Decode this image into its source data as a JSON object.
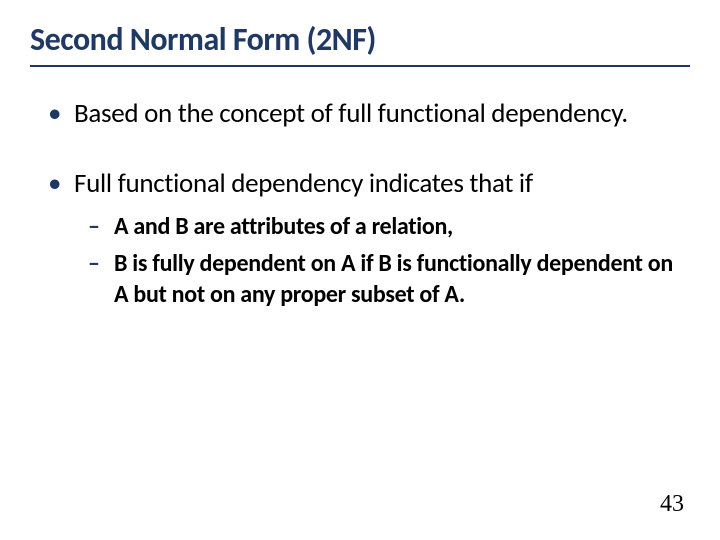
{
  "slide": {
    "title": "Second Normal Form (2NF)",
    "bullets": [
      {
        "text": "Based on the concept of full functional dependency."
      },
      {
        "text": "Full functional dependency indicates that if",
        "subs": [
          "A and B are attributes of a relation,",
          "B is fully dependent on A if B is functionally dependent on A but not on any proper subset of A."
        ]
      }
    ],
    "page_number": "43",
    "colors": {
      "title_color": "#1f3864",
      "underline_color": "#1f3864",
      "bullet_marker_color": "#1f3864",
      "text_color": "#000000",
      "background": "#ffffff"
    },
    "typography": {
      "title_fontsize": 32,
      "bullet_fontsize": 27,
      "sub_fontsize": 24,
      "page_number_fontsize": 24,
      "title_weight": 600,
      "sub_weight": 600
    }
  }
}
